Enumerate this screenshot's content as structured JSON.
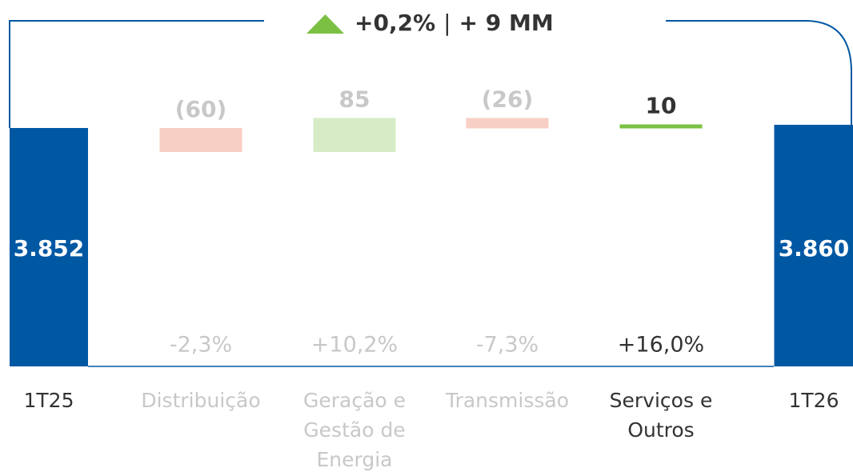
{
  "chart_data": {
    "type": "waterfall",
    "annotation": {
      "change": "+0,2%",
      "separator": "|",
      "amount": "+ 9 MM"
    },
    "categories": [
      "1T25",
      "Distribuição",
      "Geração e Gestão de Energia",
      "Transmissão",
      "Serviços e Outros",
      "1T26"
    ],
    "values": [
      3852,
      -60,
      85,
      -26,
      10,
      3860
    ],
    "value_labels": [
      "3.852",
      "(60)",
      "85",
      "(26)",
      "10",
      "3.860"
    ],
    "totals": [
      true,
      false,
      false,
      false,
      false,
      true
    ],
    "percent_labels": [
      null,
      "-2,3%",
      "+10,2%",
      "-7,3%",
      "+16,0%",
      null
    ],
    "colors": [
      "#0058a3",
      "#f8cfc4",
      "#d5ecc6",
      "#f8cfc4",
      "#7bc043",
      "#0058a3"
    ],
    "text_colors": [
      "#333333",
      "#c8c8c8",
      "#c8c8c8",
      "#c8c8c8",
      "#333333",
      "#333333"
    ],
    "up_color": "#7bc043"
  }
}
